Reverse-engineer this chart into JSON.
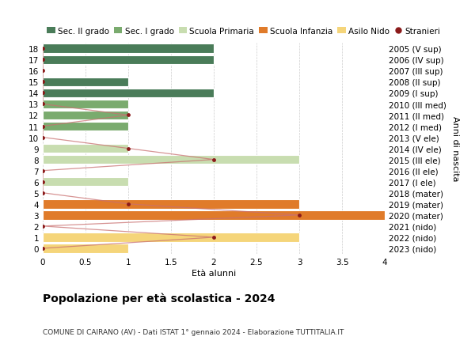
{
  "title": "Popolazione per età scolastica - 2024",
  "subtitle": "COMUNE DI CAIRANO (AV) - Dati ISTAT 1° gennaio 2024 - Elaborazione TUTTITALIA.IT",
  "xlabel_left": "Età alunni",
  "ylabel_right": "Anni di nascita",
  "xlim": [
    0,
    4.0
  ],
  "ylabels_left": [
    "0",
    "1",
    "2",
    "3",
    "4",
    "5",
    "6",
    "7",
    "8",
    "9",
    "10",
    "11",
    "12",
    "13",
    "14",
    "15",
    "16",
    "17",
    "18"
  ],
  "ylabels_right": [
    "2023 (nido)",
    "2022 (nido)",
    "2021 (nido)",
    "2020 (mater)",
    "2019 (mater)",
    "2018 (mater)",
    "2017 (I ele)",
    "2016 (II ele)",
    "2015 (III ele)",
    "2014 (IV ele)",
    "2013 (V ele)",
    "2012 (I med)",
    "2011 (II med)",
    "2010 (III med)",
    "2009 (I sup)",
    "2008 (II sup)",
    "2007 (III sup)",
    "2006 (IV sup)",
    "2005 (V sup)"
  ],
  "xticks": [
    0,
    0.5,
    1.0,
    1.5,
    2.0,
    2.5,
    3.0,
    3.5,
    4.0
  ],
  "bar_data": [
    {
      "y": 18,
      "value": 2,
      "color": "#4a7c59"
    },
    {
      "y": 17,
      "value": 2,
      "color": "#4a7c59"
    },
    {
      "y": 16,
      "value": 0,
      "color": "#4a7c59"
    },
    {
      "y": 15,
      "value": 1,
      "color": "#4a7c59"
    },
    {
      "y": 14,
      "value": 2,
      "color": "#4a7c59"
    },
    {
      "y": 13,
      "value": 1,
      "color": "#7aab6e"
    },
    {
      "y": 12,
      "value": 1,
      "color": "#7aab6e"
    },
    {
      "y": 11,
      "value": 1,
      "color": "#7aab6e"
    },
    {
      "y": 10,
      "value": 0,
      "color": "#7aab6e"
    },
    {
      "y": 9,
      "value": 1,
      "color": "#c8ddb0"
    },
    {
      "y": 8,
      "value": 3,
      "color": "#c8ddb0"
    },
    {
      "y": 7,
      "value": 0,
      "color": "#c8ddb0"
    },
    {
      "y": 6,
      "value": 1,
      "color": "#c8ddb0"
    },
    {
      "y": 5,
      "value": 0,
      "color": "#c8ddb0"
    },
    {
      "y": 4,
      "value": 3,
      "color": "#e07b2a"
    },
    {
      "y": 3,
      "value": 4,
      "color": "#e07b2a"
    },
    {
      "y": 2,
      "value": 0,
      "color": "#e07b2a"
    },
    {
      "y": 1,
      "value": 3,
      "color": "#f5d57a"
    },
    {
      "y": 0,
      "value": 1,
      "color": "#f5d57a"
    }
  ],
  "stranieri_data": [
    {
      "y": 18,
      "value": 0
    },
    {
      "y": 17,
      "value": 0
    },
    {
      "y": 16,
      "value": 0
    },
    {
      "y": 15,
      "value": 0
    },
    {
      "y": 14,
      "value": 0
    },
    {
      "y": 13,
      "value": 0
    },
    {
      "y": 12,
      "value": 1
    },
    {
      "y": 11,
      "value": 0
    },
    {
      "y": 10,
      "value": 0
    },
    {
      "y": 9,
      "value": 1
    },
    {
      "y": 8,
      "value": 2
    },
    {
      "y": 7,
      "value": 0
    },
    {
      "y": 6,
      "value": 0
    },
    {
      "y": 5,
      "value": 0
    },
    {
      "y": 4,
      "value": 1
    },
    {
      "y": 3,
      "value": 3
    },
    {
      "y": 2,
      "value": 0
    },
    {
      "y": 1,
      "value": 2
    },
    {
      "y": 0,
      "value": 0
    }
  ],
  "colors": {
    "sec2": "#4a7c59",
    "sec1": "#7aab6e",
    "prim": "#c8ddb0",
    "inf": "#e07b2a",
    "nido": "#f5d57a",
    "stranieri": "#8b1a1a",
    "stranieri_line": "#c97070",
    "grid": "#cccccc",
    "bg": "#ffffff"
  },
  "legend": [
    {
      "label": "Sec. II grado",
      "color": "#4a7c59",
      "type": "patch"
    },
    {
      "label": "Sec. I grado",
      "color": "#7aab6e",
      "type": "patch"
    },
    {
      "label": "Scuola Primaria",
      "color": "#c8ddb0",
      "type": "patch"
    },
    {
      "label": "Scuola Infanzia",
      "color": "#e07b2a",
      "type": "patch"
    },
    {
      "label": "Asilo Nido",
      "color": "#f5d57a",
      "type": "patch"
    },
    {
      "label": "Stranieri",
      "color": "#8b1a1a",
      "type": "dot"
    }
  ]
}
